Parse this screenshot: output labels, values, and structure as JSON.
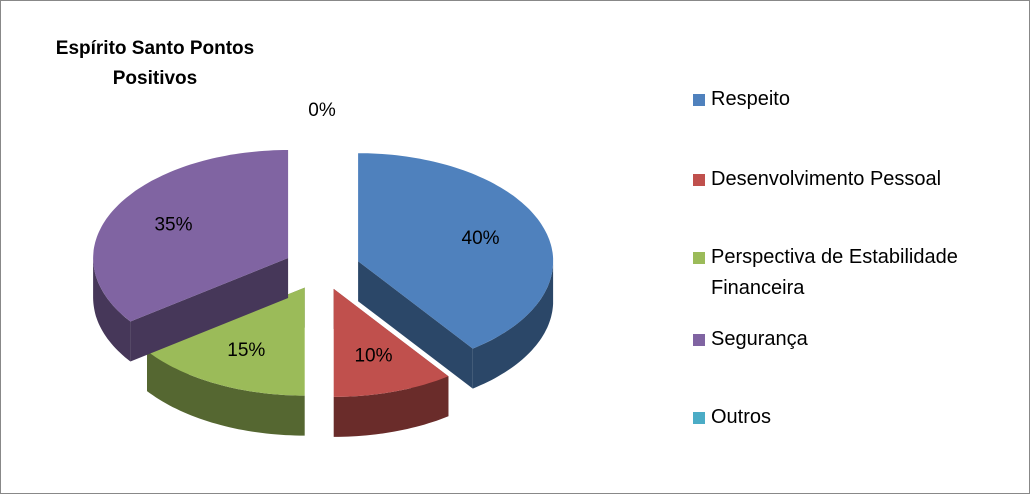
{
  "chart_data": {
    "type": "pie",
    "title": "Espírito Santo Pontos Positivos",
    "categories": [
      "Respeito",
      "Desenvolvimento Pessoal",
      "Perspectiva de Estabilidade Financeira",
      "Segurança",
      "Outros"
    ],
    "values": [
      40,
      10,
      15,
      35,
      0
    ],
    "value_labels": [
      "40%",
      "10%",
      "15%",
      "35%",
      "0%"
    ],
    "colors": [
      "#4f81bd",
      "#c0504d",
      "#9bbb59",
      "#8064a2",
      "#4bacc6"
    ],
    "legend": "right"
  }
}
